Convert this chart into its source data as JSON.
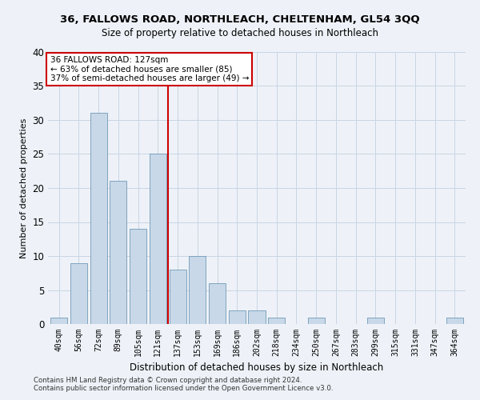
{
  "title": "36, FALLOWS ROAD, NORTHLEACH, CHELTENHAM, GL54 3QQ",
  "subtitle": "Size of property relative to detached houses in Northleach",
  "xlabel": "Distribution of detached houses by size in Northleach",
  "ylabel": "Number of detached properties",
  "bar_labels": [
    "40sqm",
    "56sqm",
    "72sqm",
    "89sqm",
    "105sqm",
    "121sqm",
    "137sqm",
    "153sqm",
    "169sqm",
    "186sqm",
    "202sqm",
    "218sqm",
    "234sqm",
    "250sqm",
    "267sqm",
    "283sqm",
    "299sqm",
    "315sqm",
    "331sqm",
    "347sqm",
    "364sqm"
  ],
  "bar_values": [
    1,
    9,
    31,
    21,
    14,
    25,
    8,
    10,
    6,
    2,
    2,
    1,
    0,
    1,
    0,
    0,
    1,
    0,
    0,
    0,
    1
  ],
  "bar_color": "#c8d8e8",
  "bar_edge_color": "#7099b8",
  "red_line_index": 5.5,
  "red_line_label": "36 FALLOWS ROAD: 127sqm",
  "annotation_line2": "← 63% of detached houses are smaller (85)",
  "annotation_line3": "37% of semi-detached houses are larger (49) →",
  "annotation_box_color": "#ffffff",
  "annotation_box_edge": "#cc0000",
  "red_line_color": "#cc0000",
  "ylim": [
    0,
    40
  ],
  "yticks": [
    0,
    5,
    10,
    15,
    20,
    25,
    30,
    35,
    40
  ],
  "grid_color": "#c8d4e4",
  "background_color": "#eef2f8",
  "footer_line1": "Contains HM Land Registry data © Crown copyright and database right 2024.",
  "footer_line2": "Contains public sector information licensed under the Open Government Licence v3.0."
}
